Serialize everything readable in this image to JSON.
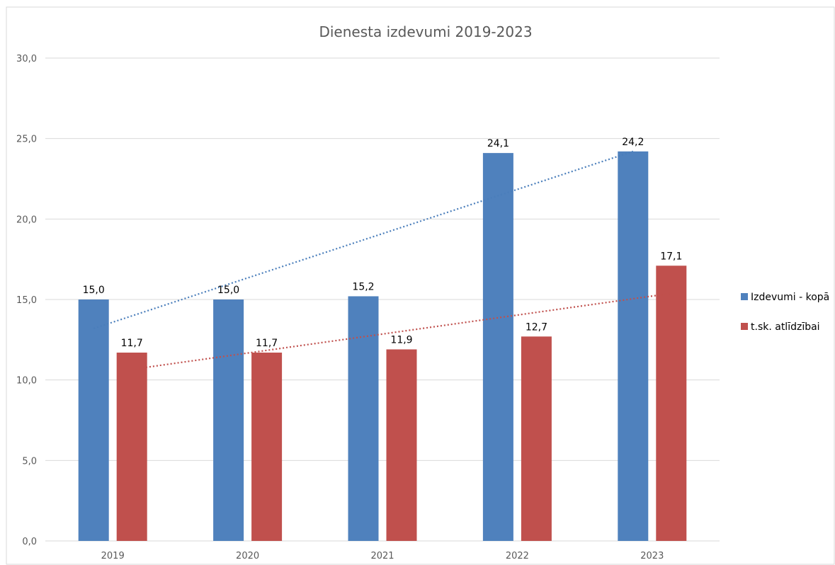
{
  "chart_data": {
    "type": "bar",
    "title": "Dienesta izdevumi 2019-2023",
    "categories": [
      "2019",
      "2020",
      "2021",
      "2022",
      "2023"
    ],
    "series": [
      {
        "name": "Izdevumi - kopā",
        "values": [
          15.0,
          15.0,
          15.2,
          24.1,
          24.2
        ],
        "labels": [
          "15,0",
          "15,0",
          "15,2",
          "24,1",
          "24,2"
        ],
        "color": "#4f81bd",
        "trendline": "linear",
        "trendline_style": "dotted"
      },
      {
        "name": "t.sk. atlīdzībai",
        "values": [
          11.7,
          11.7,
          11.9,
          12.7,
          17.1
        ],
        "labels": [
          "11,7",
          "11,7",
          "11,9",
          "12,7",
          "17,1"
        ],
        "color": "#c0504d",
        "trendline": "linear",
        "trendline_style": "dotted"
      }
    ],
    "ylim": [
      0,
      30
    ],
    "yticks": [
      0,
      5,
      10,
      15,
      20,
      25,
      30
    ],
    "ytick_labels": [
      "0,0",
      "5,0",
      "10,0",
      "15,0",
      "20,0",
      "25,0",
      "30,0"
    ],
    "xlabel": "",
    "ylabel": "",
    "grid": true,
    "legend_position": "right",
    "colors": {
      "gridline": "#d9d9d9",
      "axis_text": "#595959",
      "frame": "#d9d9d9"
    }
  }
}
